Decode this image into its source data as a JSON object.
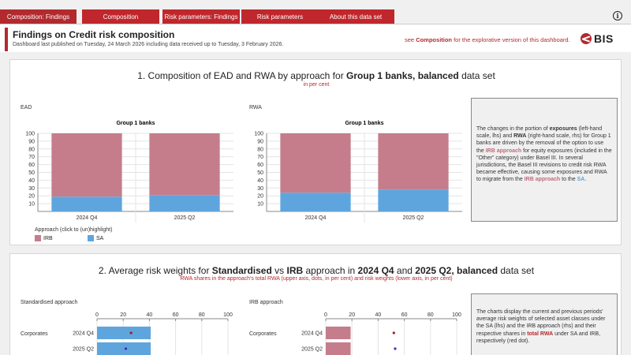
{
  "tabs": [
    {
      "label": "Composition: Findings",
      "active": true
    },
    {
      "label": "Composition",
      "active": false
    },
    {
      "label": "Risk parameters: Findings",
      "active": false
    },
    {
      "label": "Risk parameters",
      "active": false
    },
    {
      "label": "About this data set",
      "active": false
    }
  ],
  "info_icon": "info-icon",
  "header": {
    "title": "Findings on Credit risk composition",
    "subtitle": "Dashboard last published on Tuesday, 24 March 2026 including data received up to Tuesday, 3 February 2026.",
    "see_prefix": "see ",
    "see_link": "Composition",
    "see_suffix": " for the explorative version of this dashboard.",
    "logo_text": "BIS"
  },
  "section1": {
    "title_prefix": "1. Composition of EAD and RWA by approach for ",
    "title_bold": "Group 1 banks, balanced",
    "title_suffix": " data set",
    "subtitle": "in per cent",
    "legend_title": "Approach (click to (un)highlight)",
    "legend": [
      {
        "name": "IRB",
        "color": "#c57d8c"
      },
      {
        "name": "SA",
        "color": "#5fa5dd"
      }
    ],
    "note": {
      "t1": "The changes in the portion of ",
      "b1": "exposures",
      "t2": " (left-hand scale, lhs) and ",
      "b2": "RWA",
      "t3": " (right-hand scale, rhs)  for Group 1 banks are driven by the removal of the option to use the ",
      "r1": "IRB approach",
      "t4": " for equity exposures (included in the \"Other\" category) under Basel III. In several jurisdictions, the Basel III revisions to credit risk RWA became effective, causing some exposures and RWA to migrate from the ",
      "r2": "IRB approach",
      "t5": " to the ",
      "bl1": "SA",
      "t6": "."
    }
  },
  "chart_data": [
    {
      "type": "bar",
      "stacked": true,
      "panel_label": "EAD",
      "title": "Group 1 banks",
      "categories": [
        "2024 Q4",
        "2025 Q2"
      ],
      "series": [
        {
          "name": "SA",
          "values": [
            19,
            21
          ],
          "color": "#5fa5dd"
        },
        {
          "name": "IRB",
          "values": [
            81,
            79
          ],
          "color": "#c57d8c"
        }
      ],
      "ylim": [
        0,
        100
      ],
      "yticks": [
        10,
        20,
        30,
        40,
        50,
        60,
        70,
        80,
        90,
        100
      ]
    },
    {
      "type": "bar",
      "stacked": true,
      "panel_label": "RWA",
      "title": "Group 1 banks",
      "categories": [
        "2024 Q4",
        "2025 Q2"
      ],
      "series": [
        {
          "name": "SA",
          "values": [
            24,
            28
          ],
          "color": "#5fa5dd"
        },
        {
          "name": "IRB",
          "values": [
            76,
            72
          ],
          "color": "#c57d8c"
        }
      ],
      "ylim": [
        0,
        100
      ],
      "yticks": [
        10,
        20,
        30,
        40,
        50,
        60,
        70,
        80,
        90,
        100
      ]
    },
    {
      "type": "bar",
      "orientation": "horizontal",
      "panel_label": "Standardised approach",
      "row_label": "Corporates",
      "categories": [
        "2024 Q4",
        "2025 Q2"
      ],
      "risk_weights": [
        41,
        41
      ],
      "rwa_share_dots": [
        26,
        22
      ],
      "bar_color": "#5fa5dd",
      "xlim": [
        0,
        100
      ],
      "xticks": [
        0,
        20,
        40,
        60,
        80,
        100
      ]
    },
    {
      "type": "bar",
      "orientation": "horizontal",
      "panel_label": "IRB approach",
      "row_label": "Corporates",
      "categories": [
        "2024 Q4",
        "2025 Q2"
      ],
      "risk_weights": [
        19,
        19
      ],
      "rwa_share_dots": [
        52,
        53
      ],
      "bar_color": "#c57d8c",
      "xlim": [
        0,
        100
      ],
      "xticks": [
        0,
        20,
        40,
        60,
        80,
        100
      ]
    }
  ],
  "section2": {
    "t1": "2. Average risk weights for ",
    "b1": "Standardised",
    "t2": " vs ",
    "b2": "IRB",
    "t3": " approach in ",
    "b3": "2024 Q4",
    "t4": " and ",
    "b4": "2025 Q2, balanced",
    "t5": " data set",
    "subtitle": "RWA shares in the approach's total RWA (upper axis, dots, in per cent) and risk weights (lower axis, in per cent)",
    "note": {
      "t1": "The charts display the current and previous periods' average risk weights of selected asset classes under the SA (lhs) and the IRB approach (rhs) and their respective shares in ",
      "r1": "total RWA",
      "t2": " under SA and IRB, respectively (red dot)."
    }
  }
}
